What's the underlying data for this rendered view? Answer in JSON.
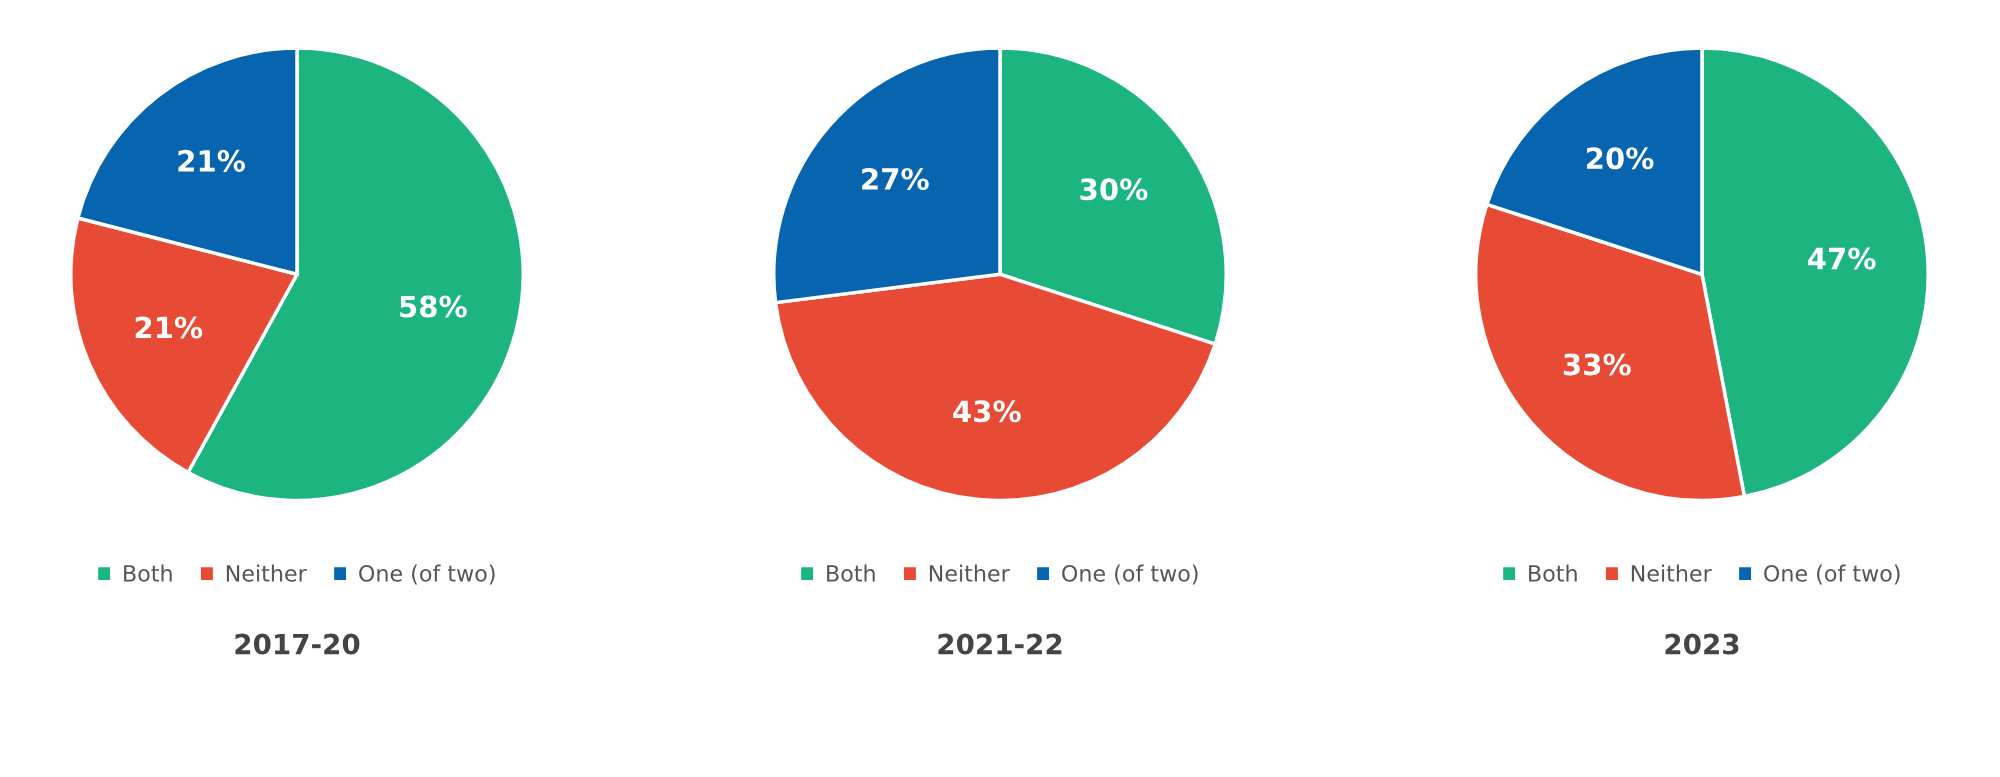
{
  "chart_data": [
    {
      "type": "pie",
      "title": "2017-20",
      "categories": [
        "Both",
        "Neither",
        "One (of two)"
      ],
      "values": [
        58,
        21,
        21
      ],
      "value_labels": [
        "58%",
        "21%",
        "21%"
      ],
      "colors": [
        "#1db57f",
        "#e84b35",
        "#0765b0"
      ],
      "legend": "bottom"
    },
    {
      "type": "pie",
      "title": "2021-22",
      "categories": [
        "Both",
        "Neither",
        "One (of two)"
      ],
      "values": [
        30,
        43,
        27
      ],
      "value_labels": [
        "30%",
        "43%",
        "27%"
      ],
      "colors": [
        "#1db57f",
        "#e84b35",
        "#0765b0"
      ],
      "legend": "bottom"
    },
    {
      "type": "pie",
      "title": "2023",
      "categories": [
        "Both",
        "Neither",
        "One (of two)"
      ],
      "values": [
        47,
        33,
        20
      ],
      "value_labels": [
        "47%",
        "33%",
        "20%"
      ],
      "colors": [
        "#1db57f",
        "#e84b35",
        "#0765b0"
      ],
      "legend": "bottom"
    }
  ]
}
